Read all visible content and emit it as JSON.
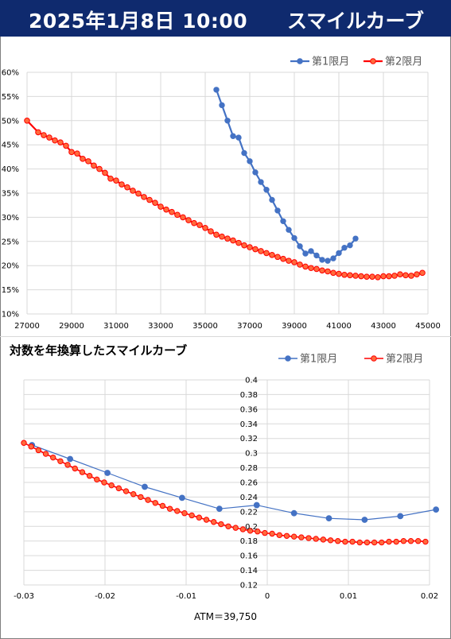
{
  "header": {
    "date_time": "2025年1月8日 10:00",
    "title": "スマイルカーブ",
    "bg_color": "#0f2a6e"
  },
  "subtitle": "対数を年換算したスマイルカーブ",
  "atm_note": "ATM＝39,750",
  "colors": {
    "series1": "#4472c4",
    "series2": "#ff0000",
    "series2_fill": "#ff6a3d"
  },
  "chart_data": [
    {
      "type": "line",
      "title": "",
      "xlabel": "",
      "ylabel": "",
      "xlim": [
        27000,
        45000
      ],
      "ylim": [
        0.1,
        0.6
      ],
      "x_ticks": [
        27000,
        29000,
        31000,
        33000,
        35000,
        37000,
        39000,
        41000,
        43000,
        45000
      ],
      "x_tick_labels": [
        "27000",
        "29000",
        "31000",
        "33000",
        "35000",
        "37000",
        "39000",
        "41000",
        "43000",
        "45000"
      ],
      "y_ticks": [
        0.1,
        0.15,
        0.2,
        0.25,
        0.3,
        0.35,
        0.4,
        0.45,
        0.5,
        0.55,
        0.6
      ],
      "y_tick_labels": [
        "10%",
        "15%",
        "20%",
        "25%",
        "30%",
        "35%",
        "40%",
        "45%",
        "50%",
        "55%",
        "60%"
      ],
      "grid": true,
      "legend_position": "top-right",
      "series": [
        {
          "name": "第1限月",
          "x": [
            35500,
            35750,
            36000,
            36250,
            36500,
            36750,
            37000,
            37250,
            37500,
            37750,
            38000,
            38250,
            38500,
            38750,
            39000,
            39250,
            39500,
            39750,
            40000,
            40250,
            40500,
            40750,
            41000,
            41250,
            41500,
            41750
          ],
          "y": [
            0.564,
            0.532,
            0.5,
            0.468,
            0.465,
            0.433,
            0.416,
            0.393,
            0.373,
            0.357,
            0.336,
            0.314,
            0.292,
            0.274,
            0.257,
            0.24,
            0.225,
            0.23,
            0.221,
            0.212,
            0.21,
            0.215,
            0.226,
            0.237,
            0.242,
            0.256
          ]
        },
        {
          "name": "第2限月",
          "x": [
            27000,
            27500,
            27750,
            28000,
            28250,
            28500,
            28750,
            29000,
            29250,
            29500,
            29750,
            30000,
            30250,
            30500,
            30750,
            31000,
            31250,
            31500,
            31750,
            32000,
            32250,
            32500,
            32750,
            33000,
            33250,
            33500,
            33750,
            34000,
            34250,
            34500,
            34750,
            35000,
            35250,
            35500,
            35750,
            36000,
            36250,
            36500,
            36750,
            37000,
            37250,
            37500,
            37750,
            38000,
            38250,
            38500,
            38750,
            39000,
            39250,
            39500,
            39750,
            40000,
            40250,
            40500,
            40750,
            41000,
            41250,
            41500,
            41750,
            42000,
            42250,
            42500,
            42750,
            43000,
            43250,
            43500,
            43750,
            44000,
            44250,
            44500,
            44750
          ],
          "y": [
            0.5,
            0.476,
            0.47,
            0.465,
            0.459,
            0.455,
            0.448,
            0.435,
            0.432,
            0.421,
            0.416,
            0.407,
            0.4,
            0.392,
            0.38,
            0.376,
            0.368,
            0.362,
            0.355,
            0.349,
            0.342,
            0.336,
            0.33,
            0.322,
            0.316,
            0.311,
            0.305,
            0.3,
            0.294,
            0.288,
            0.284,
            0.278,
            0.271,
            0.264,
            0.26,
            0.256,
            0.252,
            0.247,
            0.242,
            0.238,
            0.234,
            0.23,
            0.226,
            0.222,
            0.218,
            0.214,
            0.21,
            0.207,
            0.202,
            0.198,
            0.195,
            0.193,
            0.19,
            0.188,
            0.185,
            0.183,
            0.181,
            0.18,
            0.179,
            0.178,
            0.177,
            0.177,
            0.176,
            0.178,
            0.178,
            0.179,
            0.182,
            0.18,
            0.179,
            0.182,
            0.185
          ]
        }
      ]
    },
    {
      "type": "line",
      "title": "対数を年換算したスマイルカーブ",
      "xlabel": "",
      "ylabel": "",
      "xlim": [
        -0.03,
        0.02
      ],
      "ylim": [
        0.12,
        0.4
      ],
      "x_ticks": [
        -0.03,
        -0.02,
        -0.01,
        0,
        0.01,
        0.02
      ],
      "x_tick_labels": [
        "-0.03",
        "-0.02",
        "-0.01",
        "0",
        "0.01",
        "0.02"
      ],
      "y_ticks": [
        0.12,
        0.14,
        0.16,
        0.18,
        0.2,
        0.22,
        0.24,
        0.26,
        0.28,
        0.3,
        0.32,
        0.34,
        0.36,
        0.38,
        0.4
      ],
      "y_tick_labels": [
        "0.12",
        "0.14",
        "0.16",
        "0.18",
        "0.2",
        "0.22",
        "0.24",
        "0.26",
        "0.28",
        "0.3",
        "0.32",
        "0.34",
        "0.36",
        "0.38",
        "0.4"
      ],
      "grid": true,
      "legend_position": "top-right",
      "series": [
        {
          "name": "第1限月",
          "x": [
            -0.029,
            -0.0243,
            -0.0197,
            -0.0151,
            -0.0105,
            -0.0059,
            -0.0013,
            0.0033,
            0.0076,
            0.012,
            0.0164,
            0.0208
          ],
          "y": [
            0.311,
            0.292,
            0.273,
            0.254,
            0.239,
            0.224,
            0.229,
            0.218,
            0.211,
            0.209,
            0.214,
            0.223
          ]
        },
        {
          "name": "第2限月",
          "x": [
            -0.03,
            -0.0291,
            -0.0282,
            -0.0273,
            -0.0264,
            -0.0255,
            -0.0246,
            -0.0237,
            -0.0228,
            -0.0219,
            -0.021,
            -0.0201,
            -0.0192,
            -0.0183,
            -0.0174,
            -0.0165,
            -0.0156,
            -0.0147,
            -0.0138,
            -0.0129,
            -0.012,
            -0.0111,
            -0.0102,
            -0.0093,
            -0.0084,
            -0.0075,
            -0.0066,
            -0.0057,
            -0.0048,
            -0.0039,
            -0.003,
            -0.0021,
            -0.0012,
            -0.0003,
            0.0006,
            0.0015,
            0.0024,
            0.0033,
            0.0042,
            0.0051,
            0.006,
            0.0069,
            0.0078,
            0.0087,
            0.0096,
            0.0105,
            0.0114,
            0.0123,
            0.0132,
            0.0141,
            0.015,
            0.0159,
            0.0168,
            0.0177,
            0.0186,
            0.0195
          ],
          "y": [
            0.314,
            0.309,
            0.304,
            0.299,
            0.294,
            0.289,
            0.284,
            0.279,
            0.274,
            0.269,
            0.264,
            0.26,
            0.256,
            0.252,
            0.248,
            0.244,
            0.24,
            0.236,
            0.232,
            0.228,
            0.224,
            0.221,
            0.218,
            0.215,
            0.212,
            0.209,
            0.206,
            0.203,
            0.2,
            0.198,
            0.196,
            0.194,
            0.193,
            0.191,
            0.19,
            0.188,
            0.187,
            0.186,
            0.185,
            0.184,
            0.183,
            0.182,
            0.181,
            0.18,
            0.179,
            0.179,
            0.178,
            0.178,
            0.178,
            0.178,
            0.179,
            0.179,
            0.18,
            0.18,
            0.18,
            0.179
          ]
        }
      ]
    }
  ]
}
